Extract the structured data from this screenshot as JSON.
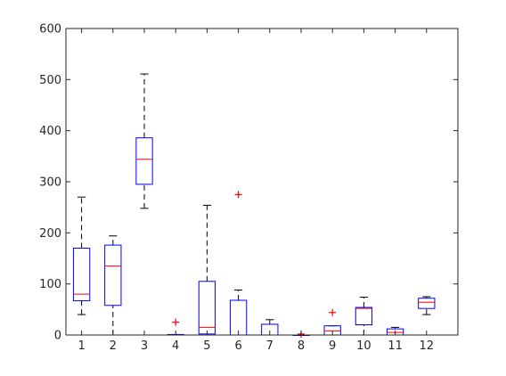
{
  "chart_data": {
    "type": "boxplot",
    "title": "",
    "xlabel": "",
    "ylabel": "",
    "ylim": [
      0,
      600
    ],
    "yticks": [
      0,
      100,
      200,
      300,
      400,
      500,
      600
    ],
    "categories": [
      "1",
      "2",
      "3",
      "4",
      "5",
      "6",
      "7",
      "8",
      "9",
      "10",
      "11",
      "12"
    ],
    "boxes": [
      {
        "category": "1",
        "whisker_low": 40,
        "q1": 67,
        "median": 80,
        "q3": 170,
        "whisker_high": 270,
        "outliers": []
      },
      {
        "category": "2",
        "whisker_low": 0,
        "q1": 58,
        "median": 135,
        "q3": 176,
        "whisker_high": 194,
        "outliers": []
      },
      {
        "category": "3",
        "whisker_low": 248,
        "q1": 295,
        "median": 344,
        "q3": 386,
        "whisker_high": 511,
        "outliers": []
      },
      {
        "category": "4",
        "whisker_low": 0,
        "q1": 0,
        "median": 0,
        "q3": 1,
        "whisker_high": 1,
        "outliers": [
          25
        ]
      },
      {
        "category": "5",
        "whisker_low": 0,
        "q1": 2,
        "median": 15,
        "q3": 105,
        "whisker_high": 254,
        "outliers": []
      },
      {
        "category": "6",
        "whisker_low": 0,
        "q1": 0,
        "median": 0,
        "q3": 68,
        "whisker_high": 88,
        "outliers": [
          275
        ]
      },
      {
        "category": "7",
        "whisker_low": 0,
        "q1": 0,
        "median": 0,
        "q3": 21,
        "whisker_high": 30,
        "outliers": []
      },
      {
        "category": "8",
        "whisker_low": 0,
        "q1": 0,
        "median": 0,
        "q3": 0,
        "whisker_high": 0,
        "outliers": [
          2
        ]
      },
      {
        "category": "9",
        "whisker_low": 0,
        "q1": 0,
        "median": 8,
        "q3": 18,
        "whisker_high": 18,
        "outliers": [
          44
        ]
      },
      {
        "category": "10",
        "whisker_low": 0,
        "q1": 20,
        "median": 52,
        "q3": 54,
        "whisker_high": 74,
        "outliers": []
      },
      {
        "category": "11",
        "whisker_low": 0,
        "q1": 0,
        "median": 5,
        "q3": 12,
        "whisker_high": 15,
        "outliers": []
      },
      {
        "category": "12",
        "whisker_low": 40,
        "q1": 52,
        "median": 64,
        "q3": 72,
        "whisker_high": 75,
        "outliers": []
      }
    ],
    "grid": false,
    "legend": "none",
    "colors": {
      "axis": "#262626",
      "box": "#0000ff",
      "median": "#ff0000",
      "whisker": "#000000",
      "outlier": "#ff0000",
      "background": "#ffffff"
    }
  }
}
